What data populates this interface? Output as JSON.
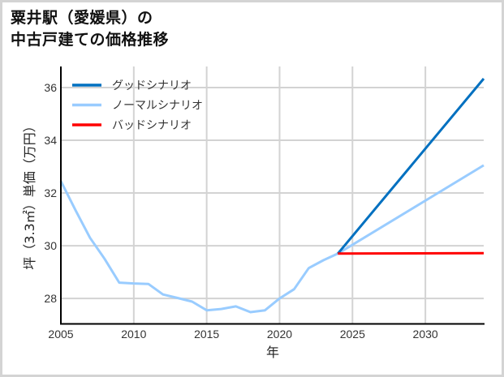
{
  "title": {
    "line1": "粟井駅（愛媛県）の",
    "line2": "中古戸建ての価格推移"
  },
  "chart_data": {
    "type": "line",
    "title": "粟井駅（愛媛県）の中古戸建ての価格推移",
    "xlabel": "年",
    "ylabel": "坪（3.3㎡）単価（万円）",
    "xlim": [
      2005,
      2034
    ],
    "ylim": [
      27.05,
      36.8
    ],
    "grid": true,
    "legend_position": "upper left",
    "x_ticks": [
      2005,
      2010,
      2015,
      2020,
      2025,
      2030
    ],
    "y_ticks": [
      28,
      30,
      32,
      34,
      36
    ],
    "series": [
      {
        "name": "グッドシナリオ",
        "color": "#0070c0",
        "x": [
          2024,
          2034
        ],
        "values": [
          29.7,
          36.34
        ]
      },
      {
        "name": "ノーマルシナリオ",
        "color": "#99ccff",
        "x": [
          2005,
          2006,
          2007,
          2008,
          2009,
          2010,
          2011,
          2012,
          2013,
          2014,
          2015,
          2016,
          2017,
          2018,
          2019,
          2020,
          2021,
          2022,
          2023,
          2024,
          2034
        ],
        "values": [
          32.45,
          31.35,
          30.3,
          29.5,
          28.6,
          28.57,
          28.55,
          28.15,
          28.02,
          27.88,
          27.55,
          27.6,
          27.7,
          27.48,
          27.55,
          28.0,
          28.35,
          29.15,
          29.45,
          29.7,
          33.05
        ]
      },
      {
        "name": "バッドシナリオ",
        "color": "#ff0000",
        "x": [
          2024,
          2034
        ],
        "values": [
          29.7,
          29.72
        ]
      }
    ]
  },
  "axes": {
    "xlabel": "年",
    "ylabel": "坪（3.3㎡）単価（万円）"
  },
  "legend": {
    "items": [
      {
        "label": "グッドシナリオ",
        "color": "#0070c0"
      },
      {
        "label": "ノーマルシナリオ",
        "color": "#99ccff"
      },
      {
        "label": "バッドシナリオ",
        "color": "#ff0000"
      }
    ]
  }
}
